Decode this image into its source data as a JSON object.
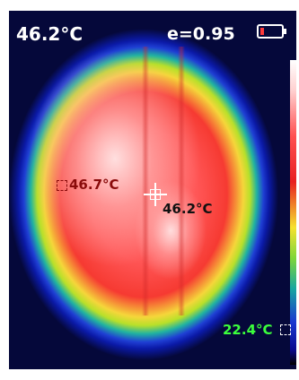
{
  "hud": {
    "max_temperature": "46.2°C",
    "emissivity": "e=0.95",
    "battery_icon": "battery-low-icon"
  },
  "markers": {
    "hot_spot_label": "46.7°C",
    "center_spot_label": "46.2°C",
    "cold_spot_label": "22.4°C"
  },
  "colors": {
    "hot_label": "#8a0b0b",
    "cold_label": "#3cff3c",
    "hud_text": "#ffffff"
  }
}
